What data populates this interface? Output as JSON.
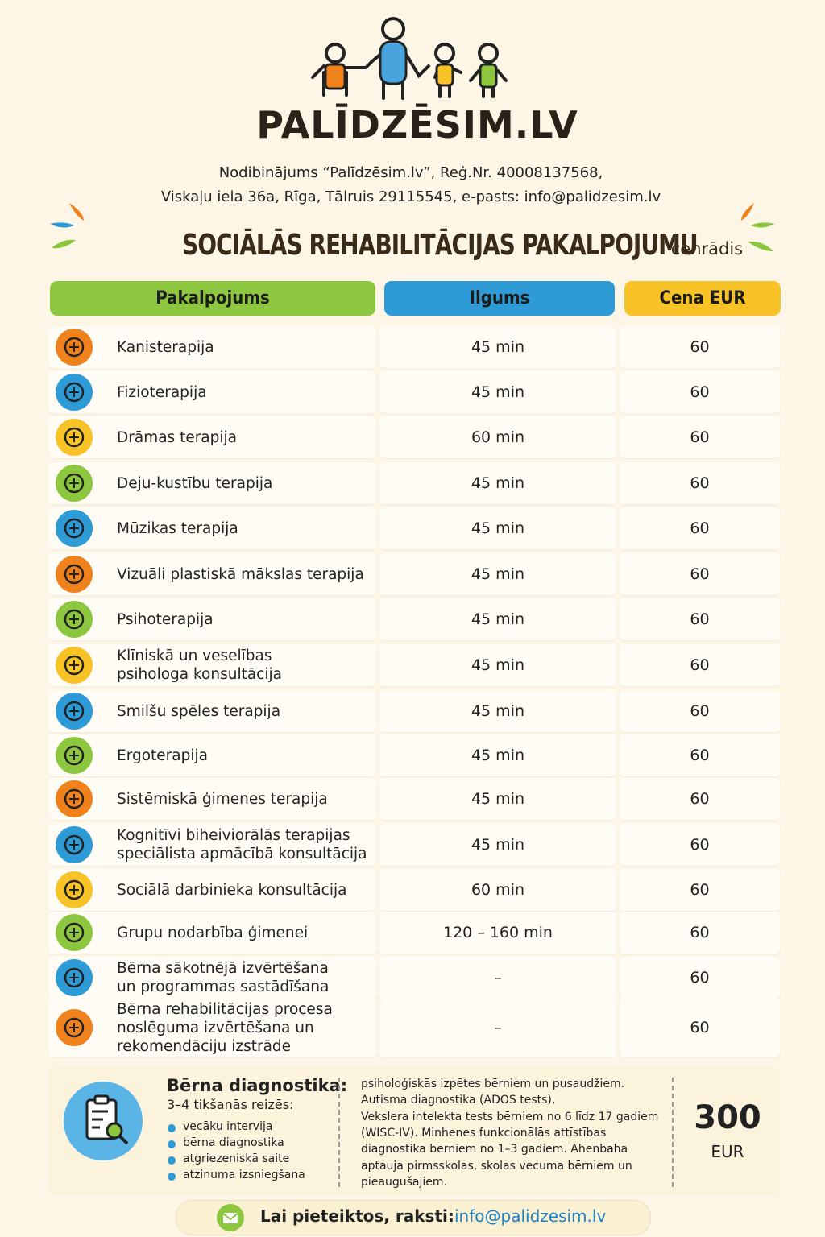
{
  "header": {
    "logo_text": "PALĪDZĒSIM.LV",
    "org_line1": "Nodibinājums “Palīdzēsim.lv”, Reģ.Nr. 40008137568,",
    "org_line2": "Viskaļu iela 36a, Rīga, Tālruis 29115545, e-pasts: info@palidzesim.lv"
  },
  "title": {
    "main": "SOCIĀLĀS REHABILITĀCIJAS PAKALPOJUMU",
    "sub": "cenrādis"
  },
  "table": {
    "headers": [
      "Pakalpojums",
      "Ilgums",
      "Cena EUR"
    ],
    "rows": [
      {
        "name": [
          "Kanisterapija"
        ],
        "duration": "45 min",
        "price": 60
      },
      {
        "name": [
          "Fizioterapija"
        ],
        "duration": "45 min",
        "price": 60
      },
      {
        "name": [
          "Drāmas terapija"
        ],
        "duration": "60 min",
        "price": 60
      },
      {
        "name": [
          "Deju-kustību terapija"
        ],
        "duration": "45 min",
        "price": 60
      },
      {
        "name": [
          "Mūzikas terapija"
        ],
        "duration": "45 min",
        "price": 60
      },
      {
        "name": [
          "Vizuāli plastiskā mākslas terapija"
        ],
        "duration": "45 min",
        "price": 60
      },
      {
        "name": [
          "Psihoterapija"
        ],
        "duration": "45 min",
        "price": 60
      },
      {
        "name": [
          "Klīniskā un veselības",
          "psihologa konsultācija"
        ],
        "duration": "45 min",
        "price": 60
      },
      {
        "name": [
          "Smilšu spēles terapija"
        ],
        "duration": "45 min",
        "price": 60
      },
      {
        "name": [
          "Ergoterapija"
        ],
        "duration": "45 min",
        "price": 60
      },
      {
        "name": [
          "Sistēmiskā ģimenes terapija"
        ],
        "duration": "45 min",
        "price": 60
      },
      {
        "name": [
          "Kognitīvi biheiviorālās terapijas",
          "speciālista apmācībā konsultācija"
        ],
        "duration": "45 min",
        "price": 60
      },
      {
        "name": [
          "Sociālā darbinieka konsultācija"
        ],
        "duration": "60 min",
        "price": 60
      },
      {
        "name": [
          "Grupu nodarbība ģimenei"
        ],
        "duration": "120 – 160 min",
        "price": 60
      },
      {
        "name": [
          "Bērna sākotnējā izvērtēšana",
          "un programmas sastādīšana"
        ],
        "duration": "–",
        "price": 60
      },
      {
        "name": [
          "Bērna rehabilitācijas procesa",
          "noslēguma izvērtēšana un",
          "rekomendāciju izstrāde"
        ],
        "duration": "–",
        "price": 60
      }
    ]
  },
  "diagnostics": {
    "title": "Bērna diagnostika:",
    "subtitle": "3–4 tikšanās reizēs:",
    "items": [
      "vecāku intervija",
      "bērna diagnostika",
      "atgriezeniskā saite",
      "atzinuma izsniegšana"
    ],
    "description": [
      "psiholoģiskās izpētes bērniem un pusaudžiem.",
      "Autisma diagnostika (ADOS tests),",
      "Vekslera intelekta tests bērniem no 6 līdz 17 gadiem",
      "(WISC-IV). Minhenes funkcionālās attīstības",
      "diagnostika bērniem no 1–3 gadiem. Ahenbaha",
      "aptauja pirmsskolas, skolas vecuma bērniem un",
      "pieaugušajiem."
    ],
    "price": 300,
    "currency": "EUR"
  },
  "footer": {
    "label": "Lai pieteiktos, raksti:",
    "email": "info@palidzesim.lv"
  }
}
